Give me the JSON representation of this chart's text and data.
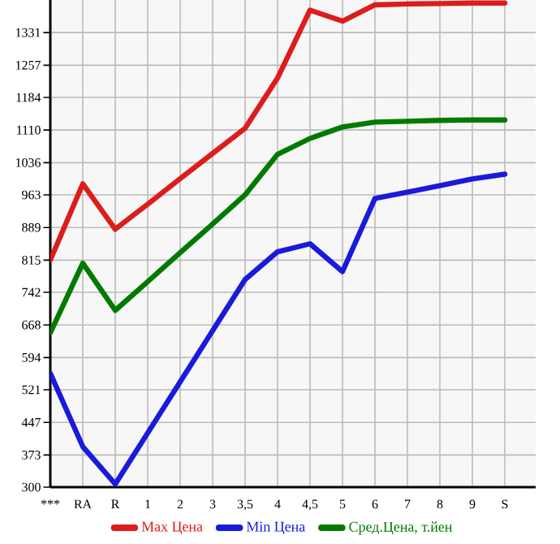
{
  "chart_data": {
    "type": "line",
    "categories": [
      "***",
      "RA",
      "R",
      "1",
      "2",
      "3",
      "3,5",
      "4",
      "4,5",
      "5",
      "6",
      "7",
      "8",
      "9",
      "S"
    ],
    "series": [
      {
        "name": "Max Цена",
        "color": "#dd1c1c",
        "values": [
          815,
          988,
          885,
          942,
          1000,
          1057,
          1114,
          1228,
          1382,
          1357,
          1394,
          1396,
          1397,
          1398,
          1398
        ]
      },
      {
        "name": "Min Цена",
        "color": "#1a1adb",
        "values": [
          558,
          392,
          307,
          423,
          539,
          655,
          771,
          834,
          852,
          789,
          955,
          969,
          984,
          999,
          1010
        ]
      },
      {
        "name": "Сред.Цена, т.йен",
        "color": "#007a00",
        "values": [
          650,
          808,
          701,
          766,
          832,
          897,
          963,
          1055,
          1091,
          1117,
          1128,
          1130,
          1132,
          1133,
          1133
        ]
      }
    ],
    "ylim": [
      300,
      1405
    ],
    "yticks": [
      300,
      373,
      447,
      521,
      594,
      668,
      742,
      815,
      889,
      963,
      1036,
      1110,
      1184,
      1257,
      1331
    ],
    "grid": true,
    "legend": "bottom",
    "marker": "none",
    "line_style": "solid"
  }
}
